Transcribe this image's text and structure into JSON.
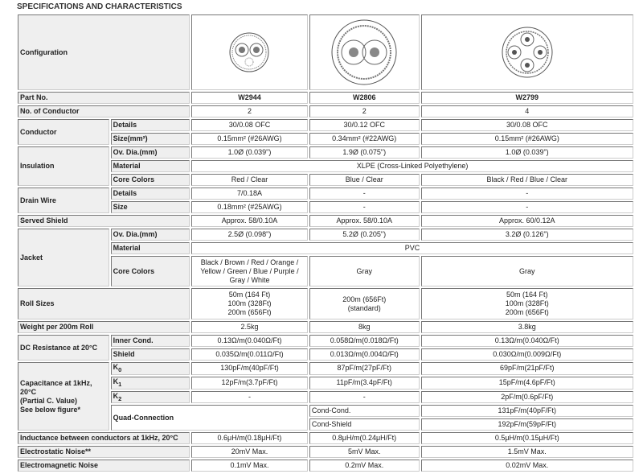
{
  "title": "SPECIFICATIONS AND CHARACTERISTICS",
  "labels": {
    "configuration": "Configuration",
    "part_no": "Part No.",
    "no_conductor": "No. of Conductor",
    "conductor": "Conductor",
    "details": "Details",
    "size_mm2": "Size(mm²)",
    "insulation": "Insulation",
    "ov_dia": "Ov. Dia.(mm)",
    "material": "Material",
    "core_colors": "Core Colors",
    "drain_wire": "Drain Wire",
    "size": "Size",
    "served_shield": "Served Shield",
    "jacket": "Jacket",
    "roll_sizes": "Roll Sizes",
    "weight": "Weight per 200m Roll",
    "dc_resistance": "DC Resistance at 20°C",
    "inner_cond": "Inner Cond.",
    "shield": "Shield",
    "capacitance": [
      "Capacitance at 1kHz,",
      "20°C",
      "(Partial C. Value)",
      "See below figure*"
    ],
    "k0": "K",
    "k0_sub": "0",
    "k1": "K",
    "k1_sub": "1",
    "k2": "K",
    "k2_sub": "2",
    "quad": "Quad-Connection",
    "cond_cond": "Cond-Cond.",
    "cond_shield": "Cond-Shield",
    "inductance": "Inductance between conductors at 1kHz, 20°C",
    "electrostatic": "Electrostatic Noise**",
    "electromagnetic": "Electromagnetic Noise"
  },
  "shared": {
    "insulation_material": "XLPE (Cross-Linked Polyethylene)",
    "jacket_material": "PVC"
  },
  "products": [
    {
      "part": "W2944",
      "conductors": "2",
      "cond_details": "30/0.08 OFC",
      "cond_size": "0.15mm² (#26AWG)",
      "ins_dia": "1.0Ø (0.039\")",
      "ins_colors": "Red / Clear",
      "drain_details": "7/0.18A",
      "drain_size": "0.18mm² (#25AWG)",
      "served_shield": "Approx. 58/0.10A",
      "jacket_dia": "2.5Ø (0.098\")",
      "jacket_colors": [
        "Black / Brown / Red / Orange /",
        "Yellow / Green / Blue / Purple /",
        "Gray / White"
      ],
      "roll": [
        "50m (164 Ft)",
        "100m (328Ft)",
        "200m (656Ft)"
      ],
      "weight": "2.5kg",
      "dc_inner": "0.13Ω/m(0.040Ω/Ft)",
      "dc_shield": "0.035Ω/m(0.011Ω/Ft)",
      "k0": "130pF/m(40pF/Ft)",
      "k1": "12pF/m(3.7pF/Ft)",
      "k2": "-",
      "inductance": "0.6μH/m(0.18μH/Ft)",
      "electrostatic": "20mV Max.",
      "electromagnetic": "0.1mV Max."
    },
    {
      "part": "W2806",
      "conductors": "2",
      "cond_details": "30/0.12 OFC",
      "cond_size": "0.34mm² (#22AWG)",
      "ins_dia": "1.9Ø (0.075\")",
      "ins_colors": "Blue / Clear",
      "drain_details": "-",
      "drain_size": "-",
      "served_shield": "Approx. 58/0.10A",
      "jacket_dia": "5.2Ø (0.205\")",
      "jacket_colors": [
        "Gray"
      ],
      "roll": [
        "200m (656Ft)",
        "(standard)"
      ],
      "weight": "8kg",
      "dc_inner": "0.058Ω/m(0.018Ω/Ft)",
      "dc_shield": "0.013Ω/m(0.004Ω/Ft)",
      "k0": "87pF/m(27pF/Ft)",
      "k1": "11pF/m(3.4pF/Ft)",
      "k2": "-",
      "inductance": "0.8μH/m(0.24μH/Ft)",
      "electrostatic": "5mV Max.",
      "electromagnetic": "0.2mV Max."
    },
    {
      "part": "W2799",
      "conductors": "4",
      "cond_details": "30/0.08 OFC",
      "cond_size": "0.15mm² (#26AWG)",
      "ins_dia": "1.0Ø (0.039\")",
      "ins_colors": "Black / Red / Blue / Clear",
      "drain_details": "-",
      "drain_size": "-",
      "served_shield": "Approx. 60/0.12A",
      "jacket_dia": "3.2Ø (0.126\")",
      "jacket_colors": [
        "Gray"
      ],
      "roll": [
        "50m (164 Ft)",
        "100m (328Ft)",
        "200m (656Ft)"
      ],
      "weight": "3.8kg",
      "dc_inner": "0.13Ω/m(0.040Ω/Ft)",
      "dc_shield": "0.030Ω/m(0.009Ω/Ft)",
      "k0": "69pF/m(21pF/Ft)",
      "k1": "15pF/m(4.6pF/Ft)",
      "k2": "2pF/m(0.6pF/Ft)",
      "quad_cond_cond": "131pF/m(40pF/Ft)",
      "quad_cond_shield": "192pF/m(59pF/Ft)",
      "inductance": "0.5μH/m(0.15μH/Ft)",
      "electrostatic": "1.5mV Max.",
      "electromagnetic": "0.02mV Max."
    }
  ]
}
